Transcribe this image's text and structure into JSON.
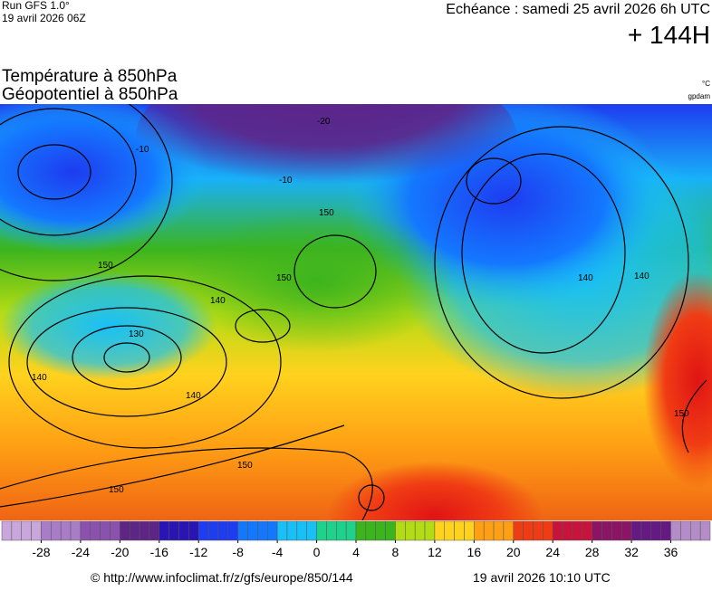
{
  "header": {
    "run": "Run GFS 1.0°",
    "run_date": "19 avril 2026 06Z",
    "echeance": "Echéance : samedi 25 avril 2026 6h UTC",
    "lead": "+ 144H",
    "title_1": "Température à 850hPa",
    "title_2": "Géopotentiel à 850hPa",
    "unit_temp": "°C",
    "unit_geo": "gpdam"
  },
  "map": {
    "contour_labels": [
      150,
      150,
      150,
      150,
      150,
      150,
      140,
      140,
      140,
      140,
      140,
      130,
      -10,
      -10,
      -20
    ]
  },
  "colorbar": {
    "lim": [
      -32,
      40
    ],
    "ticks": [
      -28,
      -24,
      -20,
      -16,
      -12,
      -8,
      -4,
      0,
      4,
      8,
      12,
      16,
      20,
      24,
      28,
      32,
      36
    ],
    "colors": [
      "#c9a6db",
      "#a97cc6",
      "#8a52ad",
      "#5e2586",
      "#2a14b4",
      "#1e3cf0",
      "#1478ff",
      "#18c0f8",
      "#1ed28c",
      "#3cb41e",
      "#b4dc14",
      "#ffd21e",
      "#ffa014",
      "#f03c14",
      "#c8143c",
      "#8c1464",
      "#641a82",
      "#b48cc8"
    ]
  },
  "footer": {
    "source": "© http://www.infoclimat.fr/z/gfs/europe/850/144",
    "generated": "19 avril 2026 10:10 UTC"
  }
}
